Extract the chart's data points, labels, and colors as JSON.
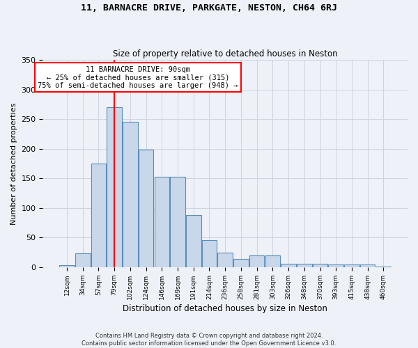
{
  "title": "11, BARNACRE DRIVE, PARKGATE, NESTON, CH64 6RJ",
  "subtitle": "Size of property relative to detached houses in Neston",
  "xlabel": "Distribution of detached houses by size in Neston",
  "ylabel": "Number of detached properties",
  "bar_color": "#c8d8ea",
  "bar_edge_color": "#5b8db8",
  "categories": [
    "12sqm",
    "34sqm",
    "57sqm",
    "79sqm",
    "102sqm",
    "124sqm",
    "146sqm",
    "169sqm",
    "191sqm",
    "214sqm",
    "236sqm",
    "258sqm",
    "281sqm",
    "303sqm",
    "326sqm",
    "348sqm",
    "370sqm",
    "393sqm",
    "415sqm",
    "438sqm",
    "460sqm"
  ],
  "values": [
    3,
    24,
    175,
    270,
    245,
    198,
    153,
    153,
    88,
    46,
    25,
    14,
    20,
    20,
    6,
    6,
    6,
    5,
    5,
    5,
    1
  ],
  "property_line_x": 3,
  "annotation_text": "11 BARNACRE DRIVE: 90sqm\n← 25% of detached houses are smaller (315)\n75% of semi-detached houses are larger (948) →",
  "annotation_box_color": "white",
  "annotation_box_edge_color": "red",
  "line_color": "red",
  "ylim": [
    0,
    350
  ],
  "yticks": [
    0,
    50,
    100,
    150,
    200,
    250,
    300,
    350
  ],
  "footnote": "Contains HM Land Registry data © Crown copyright and database right 2024.\nContains public sector information licensed under the Open Government Licence v3.0.",
  "bg_color": "#eef2f8",
  "grid_color": "#ccd4de"
}
